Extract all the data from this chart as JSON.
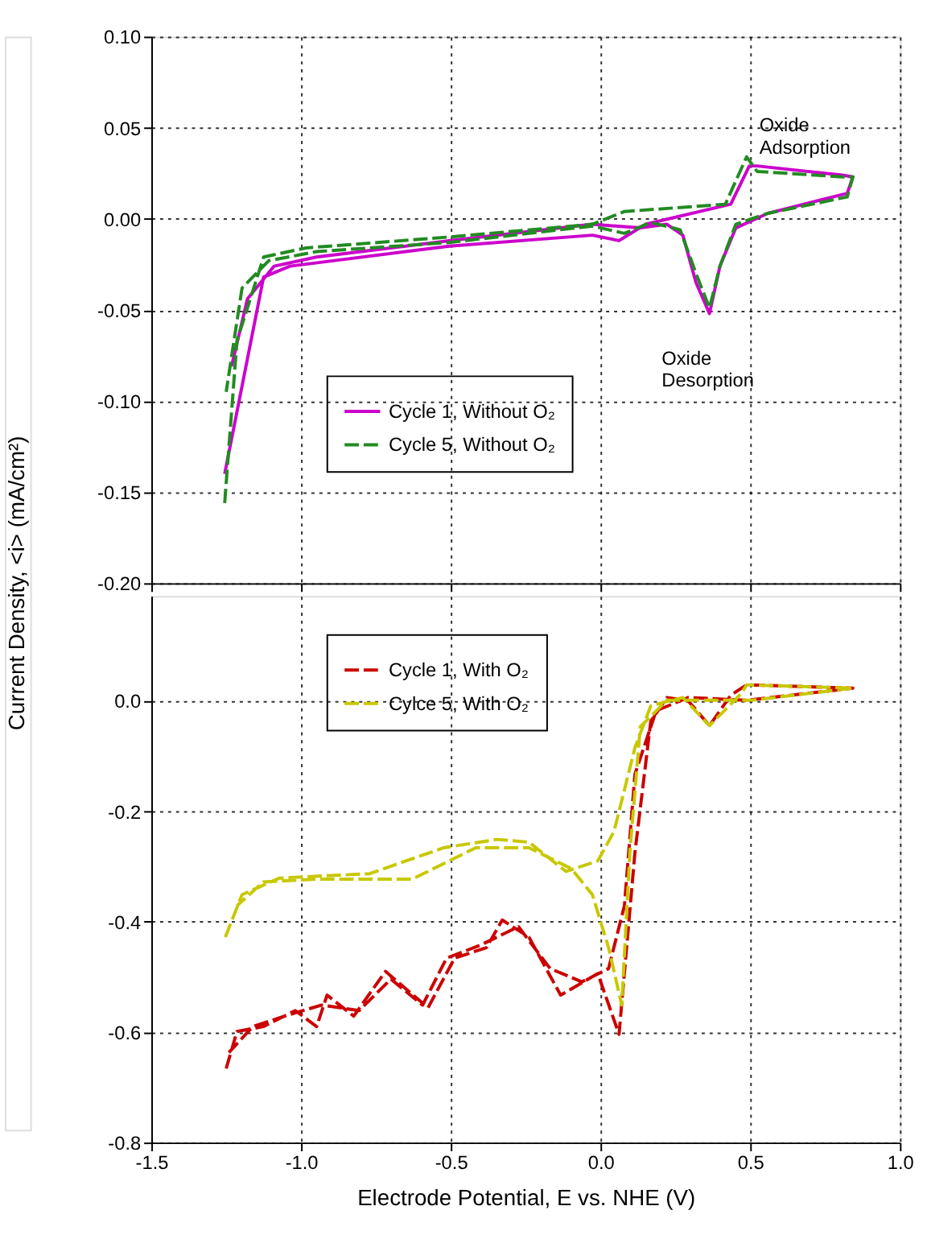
{
  "chart_data": [
    {
      "type": "line",
      "ylabel": "Current Density, <i> (mA/cm²)",
      "xlim": [
        -1.5,
        1.0
      ],
      "xticks": [
        -1.5,
        -1.0,
        -0.5,
        0.0,
        0.5,
        1.0
      ],
      "ylim": [
        -0.2,
        0.1
      ],
      "yticks": [
        {
          "value": -0.2,
          "label": "-0.20"
        },
        -0.15,
        {
          "value": -0.1,
          "label": "-0.10"
        },
        -0.05,
        {
          "value": 0.0,
          "label": "0.00"
        },
        0.05,
        {
          "value": 0.1,
          "label": "0.10"
        }
      ],
      "tick_labels": "y",
      "grid": true,
      "legend": "bottom left",
      "annotations": [
        {
          "text": "Oxide\nAdsorption",
          "x": 0.488,
          "y": 0.034
        },
        {
          "text": "Oxide\nDesorption",
          "x": 0.364,
          "y": -0.052
        }
      ],
      "series": [
        {
          "name": "Cycle 1, Without O₂",
          "color": "#cc00cc",
          "line_style": "solid",
          "x": [
            -1.255,
            -1.125,
            -1.037,
            -0.505,
            -0.027,
            0.062,
            0.151,
            0.435,
            0.497,
            0.523,
            0.807,
            0.843,
            0.824,
            0.559,
            0.452,
            0.399,
            0.364,
            0.319,
            0.275,
            0.222,
            0.133,
            -0.027,
            -0.505,
            -0.948,
            -1.09,
            -1.179,
            -1.232
          ],
          "values": [
            -0.14,
            -0.032,
            -0.026,
            -0.015,
            -0.009,
            -0.012,
            -0.003,
            0.008,
            0.029,
            0.029,
            0.024,
            0.023,
            0.014,
            0.003,
            -0.005,
            -0.026,
            -0.052,
            -0.035,
            -0.009,
            -0.003,
            -0.005,
            -0.003,
            -0.012,
            -0.021,
            -0.026,
            -0.044,
            -0.081
          ]
        },
        {
          "name": "Cycle 5, Without O₂",
          "color": "#228b22",
          "line_style": "dashed",
          "x": [
            -1.255,
            -1.214,
            -1.125,
            -0.984,
            -0.505,
            -0.027,
            0.08,
            0.417,
            0.488,
            0.523,
            0.807,
            0.843,
            0.824,
            0.559,
            0.452,
            0.399,
            0.364,
            0.319,
            0.266,
            0.168,
            0.08,
            -0.027,
            -0.505,
            -0.948,
            -1.108,
            -1.197,
            -1.25
          ],
          "values": [
            -0.156,
            -0.067,
            -0.021,
            -0.016,
            -0.01,
            -0.003,
            0.004,
            0.008,
            0.034,
            0.026,
            0.023,
            0.023,
            0.012,
            0.003,
            -0.003,
            -0.026,
            -0.049,
            -0.03,
            -0.006,
            -0.002,
            -0.008,
            -0.004,
            -0.013,
            -0.018,
            -0.023,
            -0.038,
            -0.095
          ]
        }
      ]
    },
    {
      "type": "line",
      "xlabel": "Electrode Potential, E vs. NHE (V)",
      "xlim": [
        -1.5,
        1.0
      ],
      "xticks": [
        -1.5,
        {
          "value": -1.0,
          "label": "-1.0"
        },
        -0.5,
        {
          "value": 0.0,
          "label": "0.0"
        },
        0.5,
        {
          "value": 1.0,
          "label": "1.0"
        }
      ],
      "ylim": [
        -0.8,
        0.19
      ],
      "yticks": [
        -0.8,
        -0.6,
        -0.4,
        -0.2,
        {
          "value": 0.0,
          "label": "0.0"
        }
      ],
      "grid": true,
      "legend": "top left",
      "series": [
        {
          "name": "Cycle 1, With O₂",
          "color": "#cc0000",
          "line_style": "dashed",
          "x": [
            -1.25,
            -1.214,
            -1.126,
            -1.019,
            -0.948,
            -0.913,
            -0.824,
            -0.718,
            -0.576,
            -0.487,
            -0.381,
            -0.328,
            -0.239,
            -0.133,
            -0.009,
            0.062,
            0.115,
            0.168,
            0.222,
            0.293,
            0.364,
            0.435,
            0.488,
            0.843,
            0.488,
            0.293,
            0.186,
            0.115,
            0.08,
            0.027,
            -0.062,
            -0.168,
            -0.274,
            -0.399,
            -0.514,
            -0.594,
            -0.7,
            -0.806,
            -0.931,
            -1.055,
            -1.161,
            -1.241
          ],
          "values": [
            -0.666,
            -0.599,
            -0.59,
            -0.561,
            -0.59,
            -0.533,
            -0.571,
            -0.49,
            -0.556,
            -0.466,
            -0.447,
            -0.397,
            -0.428,
            -0.533,
            -0.494,
            -0.604,
            -0.275,
            -0.037,
            0.006,
            0.0,
            -0.045,
            0.01,
            0.029,
            0.023,
            0.001,
            0.006,
            -0.018,
            -0.133,
            -0.371,
            -0.485,
            -0.509,
            -0.485,
            -0.409,
            -0.442,
            -0.466,
            -0.551,
            -0.504,
            -0.561,
            -0.551,
            -0.571,
            -0.59,
            -0.637
          ]
        },
        {
          "name": "Cylce 5, With O₂",
          "color": "#c8c800",
          "line_style": "dashed",
          "x": [
            -1.253,
            -1.197,
            -1.072,
            -0.771,
            -0.523,
            -0.346,
            -0.239,
            -0.115,
            -0.009,
            0.045,
            0.115,
            0.168,
            0.275,
            0.364,
            0.47,
            0.488,
            0.843,
            0.505,
            0.222,
            0.133,
            0.098,
            0.071,
            0.027,
            -0.027,
            -0.097,
            -0.239,
            -0.416,
            -0.629,
            -0.948,
            -1.126,
            -1.214
          ],
          "values": [
            -0.428,
            -0.351,
            -0.321,
            -0.313,
            -0.266,
            -0.251,
            -0.256,
            -0.309,
            -0.29,
            -0.237,
            -0.085,
            -0.009,
            0.006,
            -0.045,
            0.013,
            0.029,
            0.023,
            0.001,
            0.001,
            -0.047,
            -0.275,
            -0.551,
            -0.447,
            -0.351,
            -0.304,
            -0.266,
            -0.266,
            -0.323,
            -0.323,
            -0.328,
            -0.371
          ]
        }
      ]
    }
  ]
}
